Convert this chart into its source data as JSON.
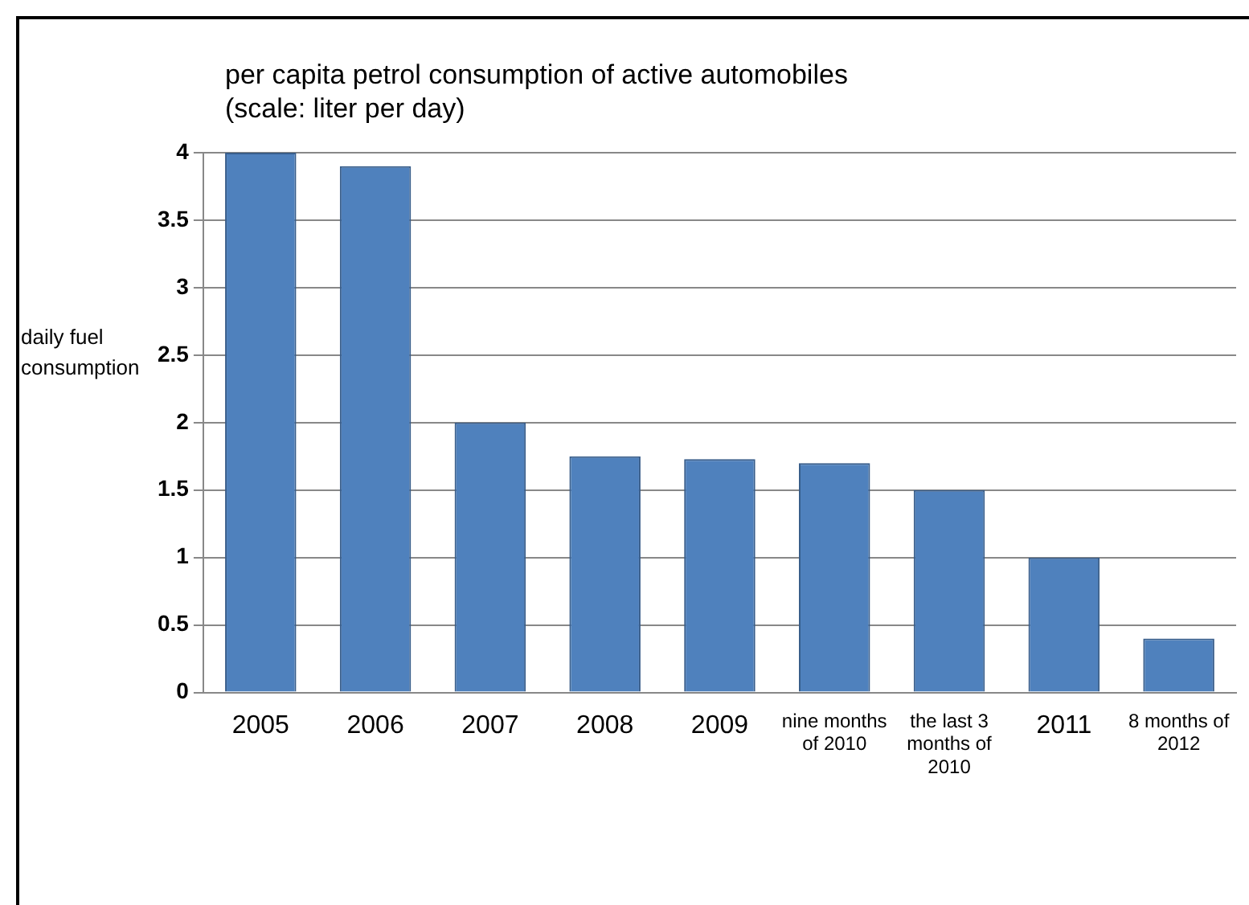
{
  "chart_data": {
    "type": "bar",
    "title": "per capita petrol consumption of active automobiles",
    "subtitle": "(scale: liter per day)",
    "ylabel": "daily fuel consumption",
    "categories": [
      "2005",
      "2006",
      "2007",
      "2008",
      "2009",
      "nine months of 2010",
      "the last 3 months of 2010",
      "2011",
      "8 months of 2012"
    ],
    "values": [
      4.0,
      3.9,
      2.0,
      1.75,
      1.73,
      1.7,
      1.5,
      1.0,
      0.4
    ],
    "color": "#4f81bd",
    "ylim": [
      0,
      4
    ],
    "yticks": [
      0,
      0.5,
      1,
      1.5,
      2,
      2.5,
      3,
      3.5,
      4
    ],
    "grid": "y",
    "legend": false
  }
}
